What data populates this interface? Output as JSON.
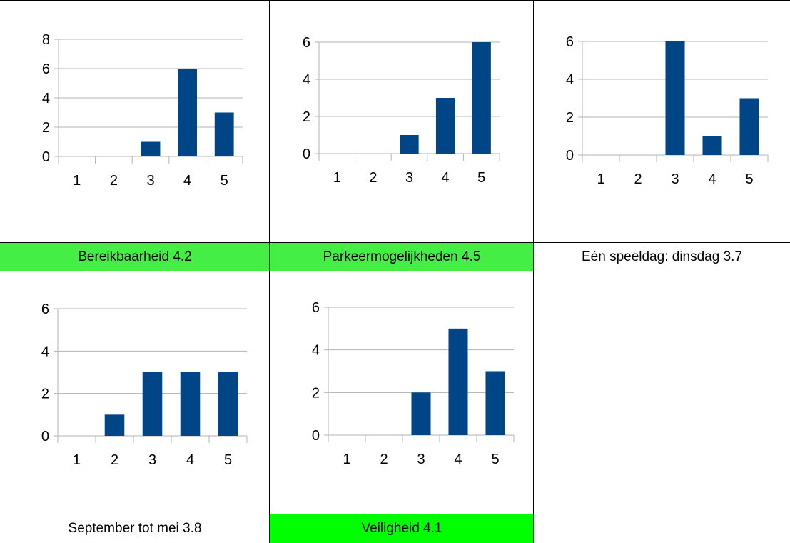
{
  "colors": {
    "bar": "#004586",
    "green": "#44ee44",
    "bright_green": "#00ff00",
    "axis": "#b3b3b3"
  },
  "labels": [
    {
      "text": "Bereikbaarheid 4.2",
      "fill": "#44ee44"
    },
    {
      "text": "Parkeermogelijkheden 4.5",
      "fill": "#44ee44"
    },
    {
      "text": "Eén speeldag: dinsdag 3.7",
      "fill": "#ffffff"
    },
    {
      "text": "September tot mei 3.8",
      "fill": "#ffffff"
    },
    {
      "text": "Veiligheid 4.1",
      "fill": "#00ff00"
    }
  ],
  "chart_data": [
    {
      "type": "bar",
      "categories": [
        "1",
        "2",
        "3",
        "4",
        "5"
      ],
      "values": [
        0,
        0,
        1,
        6,
        3
      ],
      "ylim": [
        0,
        8
      ],
      "yticks": [
        0,
        2,
        4,
        6,
        8
      ]
    },
    {
      "type": "bar",
      "categories": [
        "1",
        "2",
        "3",
        "4",
        "5"
      ],
      "values": [
        0,
        0,
        1,
        3,
        6
      ],
      "ylim": [
        0,
        6
      ],
      "yticks": [
        0,
        2,
        4,
        6
      ]
    },
    {
      "type": "bar",
      "categories": [
        "1",
        "2",
        "3",
        "4",
        "5"
      ],
      "values": [
        0,
        0,
        6,
        1,
        3
      ],
      "ylim": [
        0,
        6
      ],
      "yticks": [
        0,
        2,
        4,
        6
      ]
    },
    {
      "type": "bar",
      "categories": [
        "1",
        "2",
        "3",
        "4",
        "5"
      ],
      "values": [
        0,
        1,
        3,
        3,
        3
      ],
      "ylim": [
        0,
        6
      ],
      "yticks": [
        0,
        2,
        4,
        6
      ]
    },
    {
      "type": "bar",
      "categories": [
        "1",
        "2",
        "3",
        "4",
        "5"
      ],
      "values": [
        0,
        0,
        2,
        5,
        3
      ],
      "ylim": [
        0,
        6
      ],
      "yticks": [
        0,
        2,
        4,
        6
      ]
    }
  ]
}
